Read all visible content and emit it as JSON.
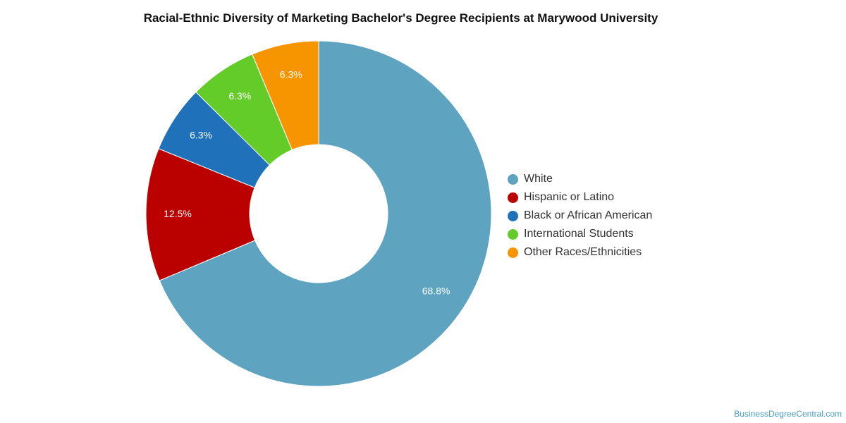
{
  "chart_data": {
    "type": "pie",
    "title": "Racial-Ethnic Diversity of Marketing Bachelor's Degree Recipients at Marywood University",
    "donut": true,
    "categories": [
      "White",
      "Hispanic or Latino",
      "Black or African American",
      "International Students",
      "Other Races/Ethnicities"
    ],
    "values": [
      68.8,
      12.5,
      6.3,
      6.3,
      6.3
    ],
    "labels": [
      "68.8%",
      "12.5%",
      "6.3%",
      "6.3%",
      "6.3%"
    ],
    "colors": [
      "#5ea3bf",
      "#bb0000",
      "#1f72ba",
      "#63cc28",
      "#f79500"
    ],
    "legend_position": "right"
  },
  "credit": "BusinessDegreeCentral.com"
}
